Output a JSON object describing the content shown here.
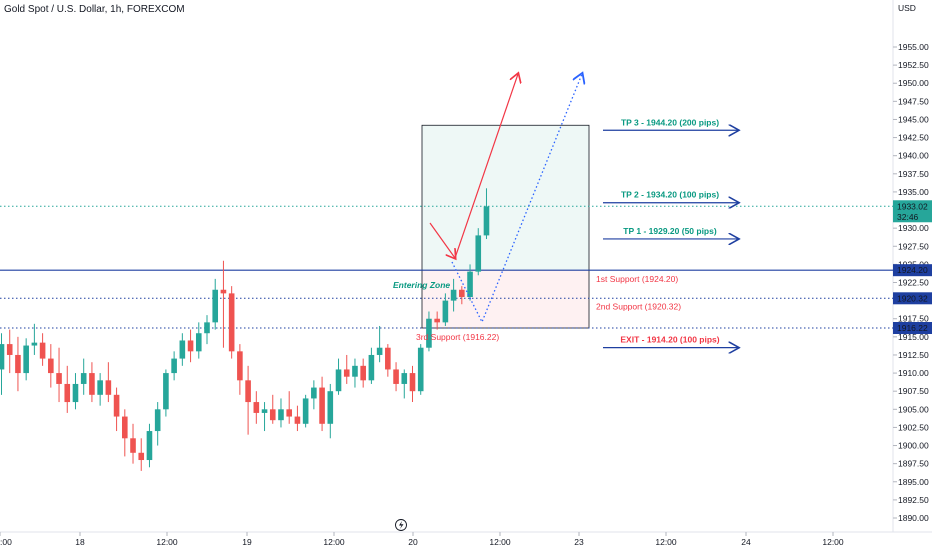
{
  "title": "Gold Spot / U.S. Dollar, 1h, FOREXCOM",
  "chart_data": {
    "type": "candlestick",
    "y_unit": "USD",
    "ylim": [
      1887.6,
      1959.6
    ],
    "y_ticks": [
      1955.0,
      1952.5,
      1950.0,
      1947.5,
      1945.0,
      1942.5,
      1940.0,
      1937.5,
      1935.0,
      1932.5,
      1930.0,
      1927.5,
      1925.0,
      1922.5,
      1920.0,
      1917.5,
      1915.0,
      1912.5,
      1910.0,
      1907.5,
      1905.0,
      1902.5,
      1900.0,
      1897.5,
      1895.0,
      1892.5,
      1890.0
    ],
    "x_ticks": [
      ":00",
      "18",
      "12:00",
      "19",
      "12:00",
      "20",
      "12:00",
      "23",
      "12:00",
      "24",
      "12:00"
    ],
    "last_price": "1933.02",
    "countdown": "32:46",
    "up_color": "#26a69a",
    "down_color": "#ef5350",
    "candles": [
      {
        "o": 1910.5,
        "h": 1915.5,
        "l": 1907.0,
        "c": 1914.0
      },
      {
        "o": 1914.0,
        "h": 1916.0,
        "l": 1910.0,
        "c": 1912.5
      },
      {
        "o": 1912.5,
        "h": 1915.0,
        "l": 1907.5,
        "c": 1910.0
      },
      {
        "o": 1910.0,
        "h": 1914.8,
        "l": 1909.0,
        "c": 1913.8
      },
      {
        "o": 1913.8,
        "h": 1916.8,
        "l": 1912.5,
        "c": 1914.2
      },
      {
        "o": 1914.2,
        "h": 1915.5,
        "l": 1911.0,
        "c": 1912.0
      },
      {
        "o": 1912.0,
        "h": 1914.0,
        "l": 1908.0,
        "c": 1910.0
      },
      {
        "o": 1910.0,
        "h": 1913.5,
        "l": 1906.0,
        "c": 1908.5
      },
      {
        "o": 1908.5,
        "h": 1911.0,
        "l": 1904.5,
        "c": 1906.0
      },
      {
        "o": 1906.0,
        "h": 1910.0,
        "l": 1905.0,
        "c": 1908.5
      },
      {
        "o": 1908.5,
        "h": 1912.0,
        "l": 1907.0,
        "c": 1910.0
      },
      {
        "o": 1910.0,
        "h": 1911.5,
        "l": 1906.0,
        "c": 1907.0
      },
      {
        "o": 1907.0,
        "h": 1910.0,
        "l": 1905.5,
        "c": 1909.0
      },
      {
        "o": 1909.0,
        "h": 1911.5,
        "l": 1906.0,
        "c": 1907.0
      },
      {
        "o": 1907.0,
        "h": 1908.0,
        "l": 1902.0,
        "c": 1904.0
      },
      {
        "o": 1904.0,
        "h": 1905.0,
        "l": 1898.5,
        "c": 1901.0
      },
      {
        "o": 1901.0,
        "h": 1903.0,
        "l": 1897.5,
        "c": 1899.0
      },
      {
        "o": 1899.0,
        "h": 1901.0,
        "l": 1896.5,
        "c": 1898.0
      },
      {
        "o": 1898.0,
        "h": 1903.0,
        "l": 1897.0,
        "c": 1902.0
      },
      {
        "o": 1902.0,
        "h": 1906.0,
        "l": 1900.0,
        "c": 1905.0
      },
      {
        "o": 1905.0,
        "h": 1910.5,
        "l": 1904.0,
        "c": 1910.0
      },
      {
        "o": 1910.0,
        "h": 1913.0,
        "l": 1909.0,
        "c": 1912.0
      },
      {
        "o": 1912.0,
        "h": 1915.5,
        "l": 1911.0,
        "c": 1914.5
      },
      {
        "o": 1914.5,
        "h": 1916.0,
        "l": 1911.5,
        "c": 1913.0
      },
      {
        "o": 1913.0,
        "h": 1917.0,
        "l": 1912.0,
        "c": 1915.5
      },
      {
        "o": 1915.5,
        "h": 1918.0,
        "l": 1914.0,
        "c": 1917.0
      },
      {
        "o": 1917.0,
        "h": 1923.0,
        "l": 1916.0,
        "c": 1921.5
      },
      {
        "o": 1921.5,
        "h": 1925.5,
        "l": 1913.5,
        "c": 1921.0
      },
      {
        "o": 1921.0,
        "h": 1922.0,
        "l": 1912.0,
        "c": 1913.0
      },
      {
        "o": 1913.0,
        "h": 1914.0,
        "l": 1907.0,
        "c": 1909.0
      },
      {
        "o": 1909.0,
        "h": 1911.0,
        "l": 1901.5,
        "c": 1906.0
      },
      {
        "o": 1906.0,
        "h": 1907.5,
        "l": 1903.0,
        "c": 1904.5
      },
      {
        "o": 1904.5,
        "h": 1906.0,
        "l": 1902.0,
        "c": 1905.0
      },
      {
        "o": 1905.0,
        "h": 1907.0,
        "l": 1903.0,
        "c": 1903.5
      },
      {
        "o": 1903.5,
        "h": 1906.5,
        "l": 1902.5,
        "c": 1905.0
      },
      {
        "o": 1905.0,
        "h": 1907.5,
        "l": 1903.0,
        "c": 1904.0
      },
      {
        "o": 1904.0,
        "h": 1905.5,
        "l": 1902.0,
        "c": 1903.0
      },
      {
        "o": 1903.0,
        "h": 1907.0,
        "l": 1902.5,
        "c": 1906.5
      },
      {
        "o": 1906.5,
        "h": 1909.0,
        "l": 1905.0,
        "c": 1908.0
      },
      {
        "o": 1908.0,
        "h": 1909.5,
        "l": 1902.0,
        "c": 1903.0
      },
      {
        "o": 1903.0,
        "h": 1908.5,
        "l": 1901.0,
        "c": 1907.5
      },
      {
        "o": 1907.5,
        "h": 1912.0,
        "l": 1907.0,
        "c": 1910.5
      },
      {
        "o": 1910.5,
        "h": 1912.5,
        "l": 1908.5,
        "c": 1909.5
      },
      {
        "o": 1909.5,
        "h": 1912.0,
        "l": 1908.0,
        "c": 1911.0
      },
      {
        "o": 1911.0,
        "h": 1912.0,
        "l": 1908.0,
        "c": 1909.0
      },
      {
        "o": 1909.0,
        "h": 1913.5,
        "l": 1908.5,
        "c": 1912.5
      },
      {
        "o": 1912.5,
        "h": 1916.5,
        "l": 1911.5,
        "c": 1913.5
      },
      {
        "o": 1913.5,
        "h": 1914.0,
        "l": 1909.5,
        "c": 1910.5
      },
      {
        "o": 1910.5,
        "h": 1911.5,
        "l": 1907.5,
        "c": 1908.5
      },
      {
        "o": 1908.5,
        "h": 1910.5,
        "l": 1906.5,
        "c": 1910.0
      },
      {
        "o": 1910.0,
        "h": 1911.0,
        "l": 1906.0,
        "c": 1907.5
      },
      {
        "o": 1907.5,
        "h": 1914.0,
        "l": 1907.0,
        "c": 1913.5
      },
      {
        "o": 1913.5,
        "h": 1918.5,
        "l": 1913.0,
        "c": 1917.5
      },
      {
        "o": 1917.5,
        "h": 1918.5,
        "l": 1916.0,
        "c": 1917.0
      },
      {
        "o": 1917.0,
        "h": 1921.0,
        "l": 1916.5,
        "c": 1920.0
      },
      {
        "o": 1920.0,
        "h": 1923.0,
        "l": 1918.5,
        "c": 1921.5
      },
      {
        "o": 1921.5,
        "h": 1922.0,
        "l": 1919.5,
        "c": 1920.5
      },
      {
        "o": 1920.5,
        "h": 1925.0,
        "l": 1920.0,
        "c": 1924.0
      },
      {
        "o": 1924.0,
        "h": 1930.0,
        "l": 1923.5,
        "c": 1929.0
      },
      {
        "o": 1929.0,
        "h": 1935.5,
        "l": 1928.5,
        "c": 1933.0
      }
    ],
    "horizontal_lines": [
      {
        "price": 1924.2,
        "label": "1924.20",
        "style": "solid",
        "color": "#1e3fa0"
      },
      {
        "price": 1920.32,
        "label": "1920.32",
        "style": "dotted",
        "color": "#1e3fa0"
      },
      {
        "price": 1916.22,
        "label": "1916.22",
        "style": "dotted",
        "color": "#1e3fa0"
      },
      {
        "price": 1933.02,
        "label": "1933.02",
        "style": "dotted",
        "color": "#26a69a"
      }
    ],
    "annotations": {
      "support_1": "1st Support (1924.20)",
      "support_2": "2nd Support (1920.32)",
      "support_3": "3rd Support (1916.22)",
      "entering_zone": "Entering Zone",
      "tp3": "TP 3 - 1944.20 (200 pips)",
      "tp2": "TP 2 - 1934.20 (100 pips)",
      "tp1": "TP 1 - 1929.20 (50 pips)",
      "exit": "EXIT - 1914.20 (100 pips)"
    },
    "position_box": {
      "top": 1944.2,
      "entry": 1924.2,
      "bottom": 1916.22
    },
    "colors": {
      "tp": "#089981",
      "exit": "#f23645",
      "arrow_blue": "#1e3fa0",
      "arrow_red": "#f23645",
      "dotted_path": "#2962ff"
    }
  }
}
